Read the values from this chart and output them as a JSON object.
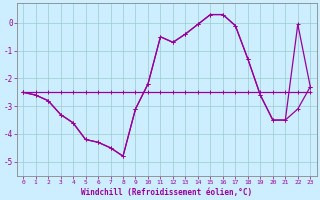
{
  "xlabel": "Windchill (Refroidissement éolien,°C)",
  "x": [
    0,
    1,
    2,
    3,
    4,
    5,
    6,
    7,
    8,
    9,
    10,
    11,
    12,
    13,
    14,
    15,
    16,
    17,
    18,
    19,
    20,
    21,
    22,
    23
  ],
  "y_flat": [
    -2.5,
    -2.5,
    -2.5,
    -2.5,
    -2.5,
    -2.5,
    -2.5,
    -2.5,
    -2.5,
    -2.5,
    -2.5,
    -2.5,
    -2.5,
    -2.5,
    -2.5,
    -2.5,
    -2.5,
    -2.5,
    -2.5,
    -2.5,
    -2.5,
    -2.5,
    -2.5,
    -2.5
  ],
  "y_main": [
    -2.5,
    -2.6,
    -2.8,
    -3.3,
    -3.6,
    -4.2,
    -4.3,
    -4.5,
    -4.8,
    -3.1,
    -2.2,
    -0.5,
    -0.7,
    -0.4,
    -0.05,
    0.3,
    0.3,
    -0.1,
    -1.3,
    -2.6,
    -3.5,
    -3.5,
    -3.1,
    -2.3
  ],
  "y_spike": [
    -2.5,
    -2.6,
    -2.8,
    -3.3,
    -3.6,
    -4.2,
    -4.3,
    -4.5,
    -4.8,
    -3.1,
    -2.2,
    -0.5,
    -0.7,
    -0.4,
    -0.05,
    0.3,
    0.3,
    -0.1,
    -1.3,
    -2.6,
    -3.5,
    -3.5,
    -0.05,
    -2.3
  ],
  "line_color": "#990099",
  "bg_color": "#cceeff",
  "grid_color": "#99cccc",
  "ylim": [
    -5.5,
    0.7
  ],
  "xlim": [
    -0.5,
    23.5
  ],
  "yticks": [
    0,
    -1,
    -2,
    -3,
    -4,
    -5
  ],
  "xticks": [
    0,
    1,
    2,
    3,
    4,
    5,
    6,
    7,
    8,
    9,
    10,
    11,
    12,
    13,
    14,
    15,
    16,
    17,
    18,
    19,
    20,
    21,
    22,
    23
  ],
  "xlabel_fontsize": 5.5,
  "ytick_fontsize": 5.5,
  "xtick_fontsize": 4.5,
  "lw": 0.9,
  "marker_size": 2.5
}
